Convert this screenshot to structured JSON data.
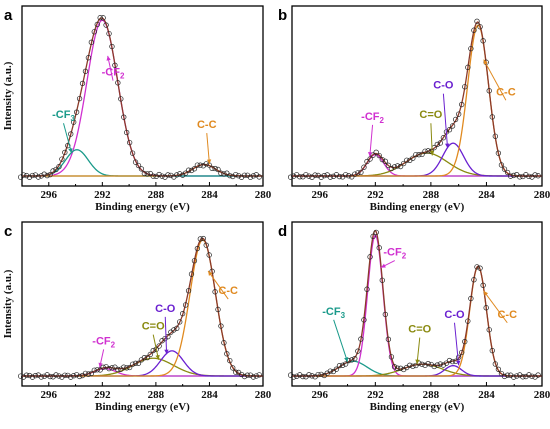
{
  "chart_data": [
    {
      "panel": "a",
      "type": "line",
      "xlabel": "Binding energy (eV)",
      "ylabel": "Intensity (a.u.)",
      "xlim": [
        298,
        280
      ],
      "ylim": [
        0,
        1.0
      ],
      "xticks": [
        296,
        292,
        288,
        284,
        280
      ],
      "xtick_labels": [
        "296",
        "292",
        "288",
        "284",
        "280"
      ],
      "peaks": [
        {
          "name": "-CF",
          "sub": "2",
          "center": 292.0,
          "height": 0.95,
          "width": 1.15,
          "color": "#d030d0",
          "label_at": [
            291.2,
            0.6
          ]
        },
        {
          "name": "-CF",
          "sub": "3",
          "center": 293.9,
          "height": 0.16,
          "width": 0.85,
          "color": "#1a9a8a",
          "label_at": [
            294.9,
            0.34
          ]
        },
        {
          "name": "C-C",
          "sub": "",
          "center": 284.4,
          "height": 0.07,
          "width": 0.85,
          "color": "#e08a20",
          "label_at": [
            284.2,
            0.28
          ]
        }
      ]
    },
    {
      "panel": "b",
      "type": "line",
      "xlabel": "Binding energy (eV)",
      "ylabel": "",
      "xlim": [
        298,
        280
      ],
      "ylim": [
        0,
        1.0
      ],
      "xticks": [
        296,
        292,
        288,
        284,
        280
      ],
      "xtick_labels": [
        "296",
        "292",
        "288",
        "284",
        "280"
      ],
      "peaks": [
        {
          "name": "-CF",
          "sub": "2",
          "center": 292.0,
          "height": 0.13,
          "width": 0.6,
          "color": "#d030d0",
          "label_at": [
            292.2,
            0.33
          ]
        },
        {
          "name": "C=O",
          "sub": "",
          "center": 288.3,
          "height": 0.14,
          "width": 1.5,
          "color": "#8a8a10",
          "label_at": [
            288.0,
            0.34
          ]
        },
        {
          "name": "C-O",
          "sub": "",
          "center": 286.4,
          "height": 0.2,
          "width": 0.75,
          "color": "#6a20d0",
          "label_at": [
            287.1,
            0.52
          ]
        },
        {
          "name": "C-C",
          "sub": "",
          "center": 284.6,
          "height": 0.92,
          "width": 0.75,
          "color": "#e08a20",
          "label_at": [
            282.6,
            0.48
          ]
        }
      ]
    },
    {
      "panel": "c",
      "type": "line",
      "xlabel": "Binding energy (eV)",
      "ylabel": "Intensity (a.u.)",
      "xlim": [
        298,
        280
      ],
      "ylim": [
        0,
        1.0
      ],
      "xticks": [
        296,
        292,
        288,
        284,
        280
      ],
      "xtick_labels": [
        "296",
        "292",
        "288",
        "284",
        "280"
      ],
      "peaks": [
        {
          "name": "-CF",
          "sub": "2",
          "center": 291.8,
          "height": 0.05,
          "width": 0.8,
          "color": "#d030d0",
          "label_at": [
            291.9,
            0.2
          ]
        },
        {
          "name": "C=O",
          "sub": "",
          "center": 288.2,
          "height": 0.12,
          "width": 1.5,
          "color": "#8a8a10",
          "label_at": [
            288.2,
            0.3
          ]
        },
        {
          "name": "C-O",
          "sub": "",
          "center": 286.8,
          "height": 0.17,
          "width": 0.85,
          "color": "#6a20d0",
          "label_at": [
            287.3,
            0.42
          ]
        },
        {
          "name": "C-C",
          "sub": "",
          "center": 284.5,
          "height": 0.92,
          "width": 0.95,
          "color": "#e08a20",
          "label_at": [
            282.6,
            0.54
          ]
        }
      ]
    },
    {
      "panel": "d",
      "type": "line",
      "xlabel": "Binding energy (eV)",
      "ylabel": "",
      "xlim": [
        298,
        280
      ],
      "ylim": [
        0,
        1.0
      ],
      "xticks": [
        296,
        292,
        288,
        284,
        280
      ],
      "xtick_labels": [
        "296",
        "292",
        "288",
        "284",
        "280"
      ],
      "peaks": [
        {
          "name": "-CF",
          "sub": "3",
          "center": 293.6,
          "height": 0.1,
          "width": 1.0,
          "color": "#1a9a8a",
          "label_at": [
            295.0,
            0.4
          ]
        },
        {
          "name": "-CF",
          "sub": "2",
          "center": 292.0,
          "height": 0.95,
          "width": 0.55,
          "color": "#d030d0",
          "label_at": [
            290.6,
            0.8
          ]
        },
        {
          "name": "C=O",
          "sub": "",
          "center": 288.6,
          "height": 0.08,
          "width": 1.4,
          "color": "#8a8a10",
          "label_at": [
            288.8,
            0.28
          ]
        },
        {
          "name": "C-O",
          "sub": "",
          "center": 286.4,
          "height": 0.07,
          "width": 0.6,
          "color": "#6a20d0",
          "label_at": [
            286.3,
            0.38
          ]
        },
        {
          "name": "C-C",
          "sub": "",
          "center": 284.6,
          "height": 0.74,
          "width": 0.6,
          "color": "#e08a20",
          "label_at": [
            282.5,
            0.38
          ]
        }
      ]
    }
  ],
  "colors": {
    "envelope": "#8b3a2a",
    "baseline": "#1a9a8a",
    "points": "#222222"
  }
}
